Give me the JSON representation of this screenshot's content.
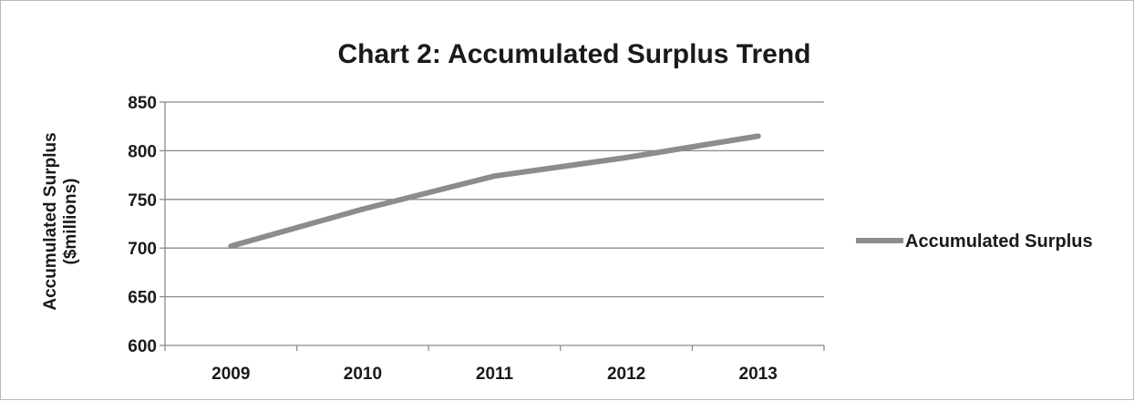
{
  "chart_data": {
    "type": "line",
    "title": "Chart 2: Accumulated Surplus Trend",
    "xlabel": "",
    "ylabel_lines": [
      "Accumulated Surplus",
      "($millions)"
    ],
    "categories": [
      "2009",
      "2010",
      "2011",
      "2012",
      "2013"
    ],
    "series": [
      {
        "name": "Accumulated Surplus",
        "values": [
          702,
          740,
          774,
          793,
          815
        ],
        "color": "#8c8c8c"
      }
    ],
    "ylim": [
      600,
      850
    ],
    "yticks": [
      600,
      650,
      700,
      750,
      800,
      850
    ],
    "grid": true,
    "legend_position": "right"
  }
}
